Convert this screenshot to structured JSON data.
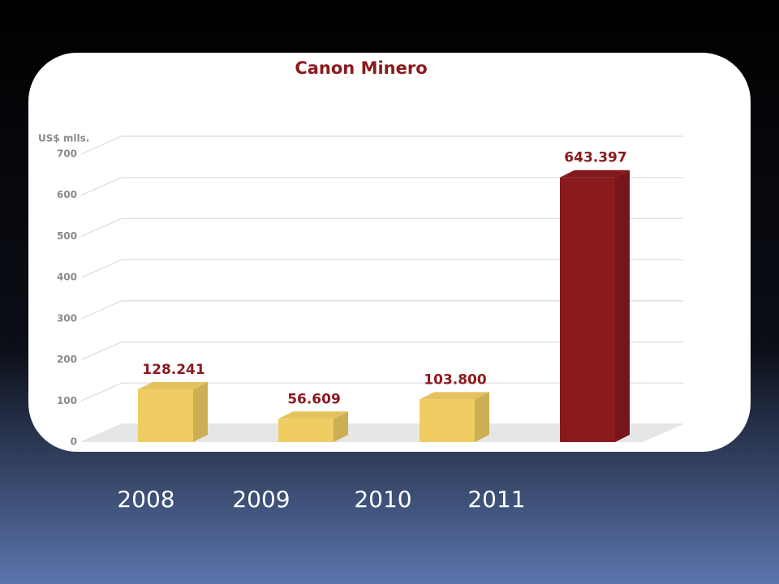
{
  "chart_data": {
    "type": "bar",
    "title": "Canon Minero",
    "y_label": "US$ mlls.",
    "categories": [
      "2008",
      "2009",
      "2010",
      "2011"
    ],
    "values": [
      128.241,
      56.609,
      103.8,
      643.397
    ],
    "value_labels": [
      "128.241",
      "56.609",
      "103.800",
      "643.397"
    ],
    "colors": [
      "#f0cd63",
      "#f0cd63",
      "#f0cd63",
      "#8b1a1e"
    ],
    "ylim": [
      0,
      700
    ],
    "yticks": [
      0,
      100,
      200,
      300,
      400,
      500,
      600,
      700
    ],
    "grid": true
  }
}
